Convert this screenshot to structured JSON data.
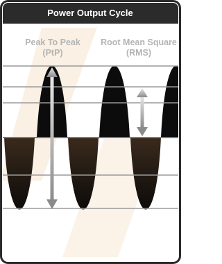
{
  "header": {
    "title": "Power Output Cycle"
  },
  "labels": {
    "ptp": {
      "name": "Peak To Peak",
      "abbr": "(PtP)"
    },
    "rms": {
      "name": "Root Mean Square",
      "abbr": "(RMS)"
    }
  }
}
